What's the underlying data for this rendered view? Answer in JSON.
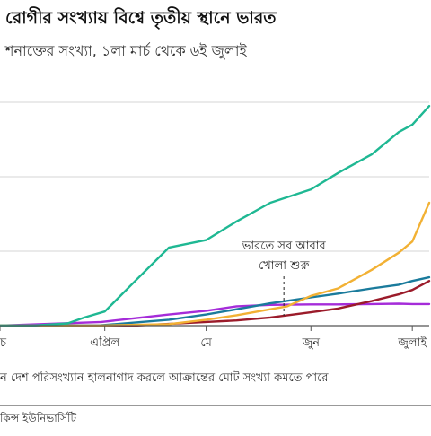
{
  "header": {
    "title": "রোগীর সংখ্যায় বিশ্বে তৃতীয় স্থানে ভারত",
    "subtitle": "শনাক্তের সংখ্যা, ১লা মার্চ থেকে ৬ই জুলাই"
  },
  "footer": {
    "note": "ন দেশ পরিসংখ্যান হালনাগাদ করলে আক্রান্তের মোট সংখ্যা কমতে পারে",
    "source": "কিন্স ইউনিভার্সিটি"
  },
  "colors": {
    "teal": "#1fb893",
    "orange": "#f2b134",
    "blue": "#1a7b9c",
    "darkred": "#9b1b2a",
    "purple": "#a52cd9",
    "grid": "#d4d4d4",
    "axis": "#555555"
  },
  "chart_data": {
    "type": "line",
    "x_ticks": [
      {
        "day": 0,
        "label": "চ"
      },
      {
        "day": 31,
        "label": "এপ্রিল"
      },
      {
        "day": 61,
        "label": "মে"
      },
      {
        "day": 92,
        "label": "জুন"
      },
      {
        "day": 122,
        "label": "জুলাই"
      }
    ],
    "xlim": [
      0,
      127
    ],
    "ylim": [
      0,
      3000000
    ],
    "y_gridlines": [
      0,
      1000000,
      2000000,
      3000000
    ],
    "annotation": {
      "day": 84,
      "lines": [
        "ভারতে সব আবার",
        "খোলা শুরু"
      ]
    },
    "series": [
      {
        "key": "teal",
        "color": "#1fb893",
        "days": [
          0,
          10,
          20,
          25,
          31,
          40,
          50,
          61,
          70,
          80,
          92,
          100,
          110,
          118,
          122,
          127
        ],
        "values": [
          0,
          1000,
          30000,
          110000,
          190000,
          600000,
          1050000,
          1150000,
          1400000,
          1650000,
          1830000,
          2050000,
          2300000,
          2600000,
          2700000,
          2950000
        ]
      },
      {
        "key": "orange",
        "color": "#f2b134",
        "days": [
          0,
          30,
          50,
          61,
          70,
          80,
          85,
          92,
          100,
          110,
          118,
          122,
          127
        ],
        "values": [
          0,
          1000,
          20000,
          80000,
          140000,
          220000,
          260000,
          400000,
          500000,
          750000,
          980000,
          1130000,
          1650000
        ]
      },
      {
        "key": "blue",
        "color": "#1a7b9c",
        "days": [
          0,
          30,
          50,
          61,
          70,
          80,
          92,
          100,
          110,
          118,
          122,
          127
        ],
        "values": [
          0,
          5000,
          80000,
          150000,
          220000,
          300000,
          380000,
          430000,
          500000,
          550000,
          600000,
          650000
        ]
      },
      {
        "key": "darkred",
        "color": "#9b1b2a",
        "days": [
          0,
          40,
          61,
          70,
          80,
          92,
          100,
          110,
          118,
          122,
          127
        ],
        "values": [
          0,
          1000,
          50000,
          70000,
          110000,
          180000,
          230000,
          330000,
          420000,
          480000,
          600000
        ]
      },
      {
        "key": "purple",
        "color": "#a52cd9",
        "days": [
          0,
          30,
          50,
          61,
          70,
          80,
          92,
          100,
          110,
          118,
          122,
          127
        ],
        "values": [
          0,
          50000,
          150000,
          200000,
          260000,
          280000,
          285000,
          285000,
          290000,
          295000,
          290000,
          290000
        ]
      }
    ]
  }
}
